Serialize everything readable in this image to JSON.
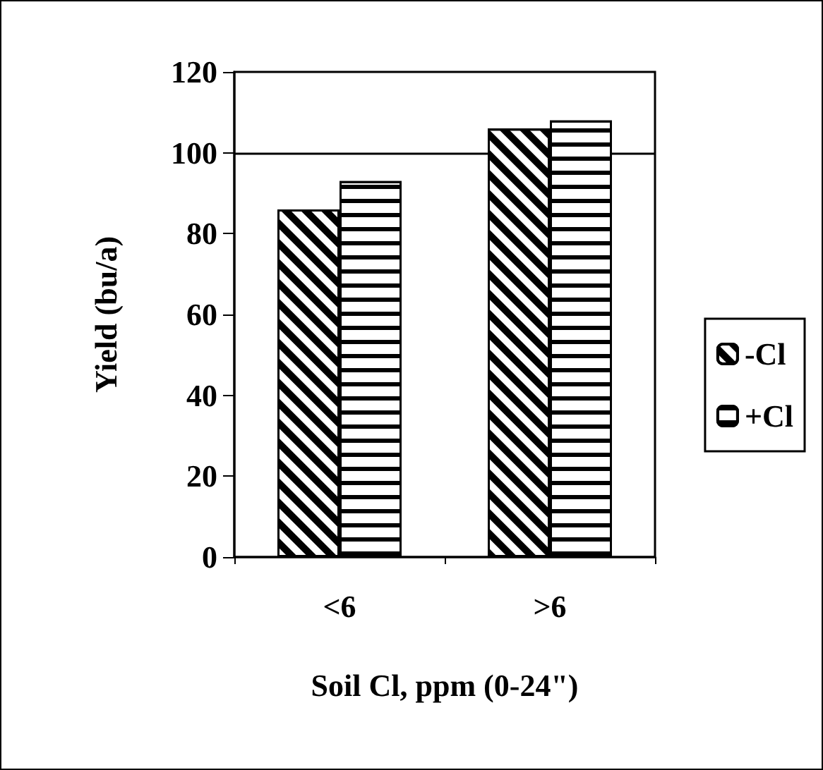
{
  "chart_data": {
    "type": "bar",
    "xlabel": "Soil Cl, ppm (0-24\")",
    "ylabel": "Yield (bu/a)",
    "categories": [
      "<6",
      ">6"
    ],
    "series": [
      {
        "name": "-Cl",
        "color": "#000000",
        "values": [
          86,
          106
        ]
      },
      {
        "name": "+Cl",
        "color": "#000000",
        "values": [
          93,
          108
        ]
      }
    ],
    "ylim": [
      0,
      120
    ],
    "yticks": [
      0,
      20,
      40,
      60,
      80,
      100,
      120
    ],
    "grid": false,
    "legend": "right",
    "ref_lines": [
      {
        "axis": "y",
        "value": 100
      }
    ]
  }
}
